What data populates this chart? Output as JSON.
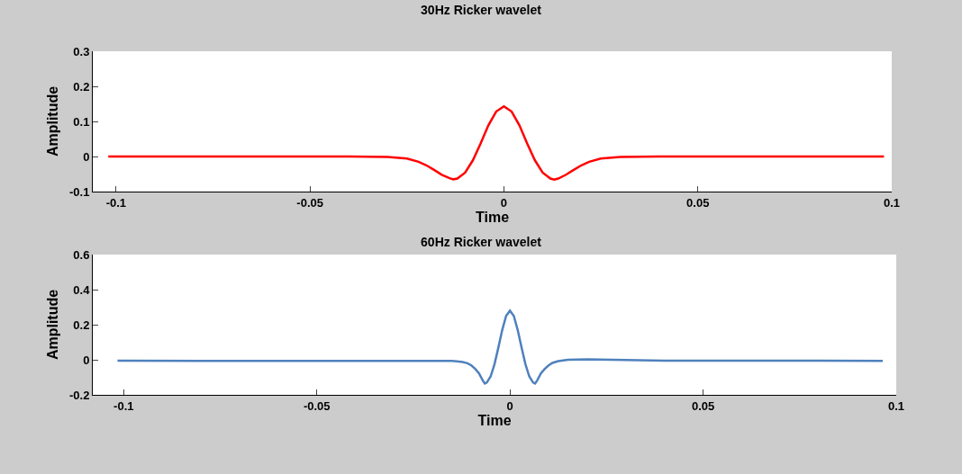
{
  "chart_data": [
    {
      "type": "line",
      "title": "30Hz Ricker wavelet",
      "xlabel": "Time",
      "ylabel": "Amplitude",
      "xlim": [
        -0.106,
        0.1
      ],
      "xticks": [
        -0.1,
        -0.05,
        0,
        0.05,
        0.1
      ],
      "ylim": [
        -0.1,
        0.3
      ],
      "yticks": [
        -0.1,
        0,
        0.1,
        0.2,
        0.3
      ],
      "x": [
        -0.102,
        -0.08,
        -0.06,
        -0.04,
        -0.03,
        -0.025,
        -0.022,
        -0.02,
        -0.018,
        -0.016,
        -0.014,
        -0.013,
        -0.012,
        -0.01,
        -0.008,
        -0.006,
        -0.004,
        -0.002,
        0,
        0.002,
        0.004,
        0.006,
        0.008,
        0.01,
        0.012,
        0.013,
        0.014,
        0.016,
        0.018,
        0.02,
        0.022,
        0.025,
        0.03,
        0.04,
        0.06,
        0.08,
        0.098
      ],
      "series": [
        {
          "color": "#ff0000",
          "values": [
            0,
            0,
            0,
            0,
            -0.001,
            -0.006,
            -0.015,
            -0.025,
            -0.038,
            -0.052,
            -0.062,
            -0.065,
            -0.063,
            -0.046,
            -0.011,
            0.037,
            0.089,
            0.128,
            0.143,
            0.128,
            0.089,
            0.037,
            -0.011,
            -0.046,
            -0.063,
            -0.066,
            -0.063,
            -0.052,
            -0.038,
            -0.025,
            -0.015,
            -0.006,
            -0.001,
            0,
            0,
            0,
            0
          ]
        }
      ]
    },
    {
      "type": "line",
      "title": "60Hz Ricker wavelet",
      "xlabel": "Time",
      "ylabel": "Amplitude",
      "xlim": [
        -0.108,
        0.1
      ],
      "xticks": [
        -0.1,
        -0.05,
        0,
        0.05,
        0.1
      ],
      "ylim": [
        -0.2,
        0.6
      ],
      "yticks": [
        -0.2,
        0,
        0.2,
        0.4,
        0.6
      ],
      "x": [
        -0.1016,
        -0.08,
        -0.06,
        -0.04,
        -0.02,
        -0.015,
        -0.0125,
        -0.011,
        -0.01,
        -0.009,
        -0.008,
        -0.007,
        -0.0065,
        -0.006,
        -0.005,
        -0.004,
        -0.003,
        -0.002,
        -0.001,
        0,
        0.001,
        0.002,
        0.003,
        0.004,
        0.005,
        0.006,
        0.0065,
        0.007,
        0.008,
        0.009,
        0.01,
        0.011,
        0.0125,
        0.015,
        0.02,
        0.04,
        0.06,
        0.08,
        0.0965
      ],
      "series": [
        {
          "color": "#4f81bd",
          "values": [
            -0.005,
            -0.007,
            -0.007,
            -0.007,
            -0.007,
            -0.007,
            -0.012,
            -0.02,
            -0.032,
            -0.052,
            -0.078,
            -0.12,
            -0.135,
            -0.13,
            -0.095,
            -0.025,
            0.07,
            0.17,
            0.25,
            0.28,
            0.25,
            0.17,
            0.07,
            -0.025,
            -0.095,
            -0.13,
            -0.135,
            -0.12,
            -0.078,
            -0.052,
            -0.032,
            -0.018,
            -0.008,
            0,
            0.002,
            -0.005,
            -0.005,
            -0.005,
            -0.007
          ]
        }
      ]
    }
  ]
}
